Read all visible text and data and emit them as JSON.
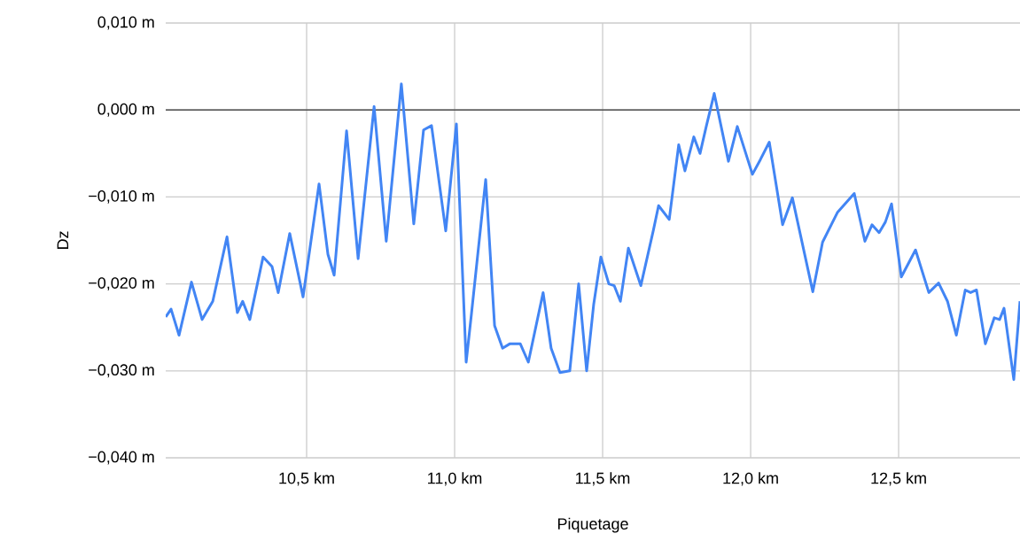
{
  "chart_data": {
    "type": "line",
    "xlabel": "Piquetage",
    "ylabel": "Dz",
    "xlim": [
      10.024,
      12.91
    ],
    "ylim": [
      -0.04,
      0.01
    ],
    "xticks": [
      {
        "value": 10.5,
        "label": "10,5 km"
      },
      {
        "value": 11.0,
        "label": "11,0 km"
      },
      {
        "value": 11.5,
        "label": "11,5 km"
      },
      {
        "value": 12.0,
        "label": "12,0 km"
      },
      {
        "value": 12.5,
        "label": "12,5 km"
      }
    ],
    "yticks": [
      {
        "value": -0.04,
        "label": "−0,040 m"
      },
      {
        "value": -0.03,
        "label": "−0,030 m"
      },
      {
        "value": -0.02,
        "label": "−0,020 m"
      },
      {
        "value": -0.01,
        "label": "−0,010 m"
      },
      {
        "value": 0,
        "label": "0,000 m"
      },
      {
        "value": 0.01,
        "label": "0,010 m"
      }
    ],
    "grid": true,
    "marker": "none",
    "line_style": "solid",
    "ref_lines": [
      {
        "axis": "y",
        "value": 0,
        "color": "#333333"
      }
    ],
    "x": [
      10.024,
      10.042,
      10.069,
      10.111,
      10.147,
      10.183,
      10.231,
      10.266,
      10.284,
      10.308,
      10.353,
      10.383,
      10.404,
      10.443,
      10.488,
      10.542,
      10.572,
      10.593,
      10.635,
      10.674,
      10.728,
      10.769,
      10.82,
      10.862,
      10.895,
      10.922,
      10.97,
      11.006,
      11.039,
      11.057,
      11.105,
      11.135,
      11.162,
      11.186,
      11.222,
      11.249,
      11.299,
      11.326,
      11.356,
      11.389,
      11.419,
      11.446,
      11.47,
      11.494,
      11.521,
      11.539,
      11.56,
      11.587,
      11.629,
      11.671,
      11.689,
      11.725,
      11.757,
      11.778,
      11.808,
      11.829,
      11.85,
      11.877,
      11.925,
      11.955,
      12.006,
      12.033,
      12.063,
      12.108,
      12.141,
      12.21,
      12.243,
      12.293,
      12.35,
      12.386,
      12.41,
      12.434,
      12.455,
      12.476,
      12.509,
      12.557,
      12.602,
      12.635,
      12.665,
      12.695,
      12.725,
      12.743,
      12.763,
      12.793,
      12.823,
      12.841,
      12.856,
      12.889,
      12.91
    ],
    "series": [
      {
        "color": "#4285f4",
        "values": [
          -0.0238,
          -0.0229,
          -0.0259,
          -0.0198,
          -0.0241,
          -0.022,
          -0.0146,
          -0.0233,
          -0.022,
          -0.0241,
          -0.0169,
          -0.018,
          -0.021,
          -0.0142,
          -0.0215,
          -0.0085,
          -0.0166,
          -0.019,
          -0.0024,
          -0.0171,
          0.0004,
          -0.0151,
          0.003,
          -0.0131,
          -0.0023,
          -0.0018,
          -0.0139,
          -0.0016,
          -0.029,
          -0.0234,
          -0.008,
          -0.0248,
          -0.0274,
          -0.0269,
          -0.0269,
          -0.029,
          -0.021,
          -0.0274,
          -0.0302,
          -0.03,
          -0.02,
          -0.03,
          -0.0223,
          -0.0169,
          -0.02,
          -0.0202,
          -0.022,
          -0.0159,
          -0.0202,
          -0.0139,
          -0.011,
          -0.0126,
          -0.004,
          -0.007,
          -0.0031,
          -0.005,
          -0.0019,
          0.0019,
          -0.0059,
          -0.0019,
          -0.0074,
          -0.0057,
          -0.0037,
          -0.0132,
          -0.0101,
          -0.0209,
          -0.0152,
          -0.0118,
          -0.0096,
          -0.0151,
          -0.0132,
          -0.0141,
          -0.0129,
          -0.0108,
          -0.0192,
          -0.0161,
          -0.021,
          -0.0199,
          -0.022,
          -0.0259,
          -0.0207,
          -0.021,
          -0.0207,
          -0.0269,
          -0.0239,
          -0.0241,
          -0.0228,
          -0.031,
          -0.022
        ]
      }
    ]
  }
}
